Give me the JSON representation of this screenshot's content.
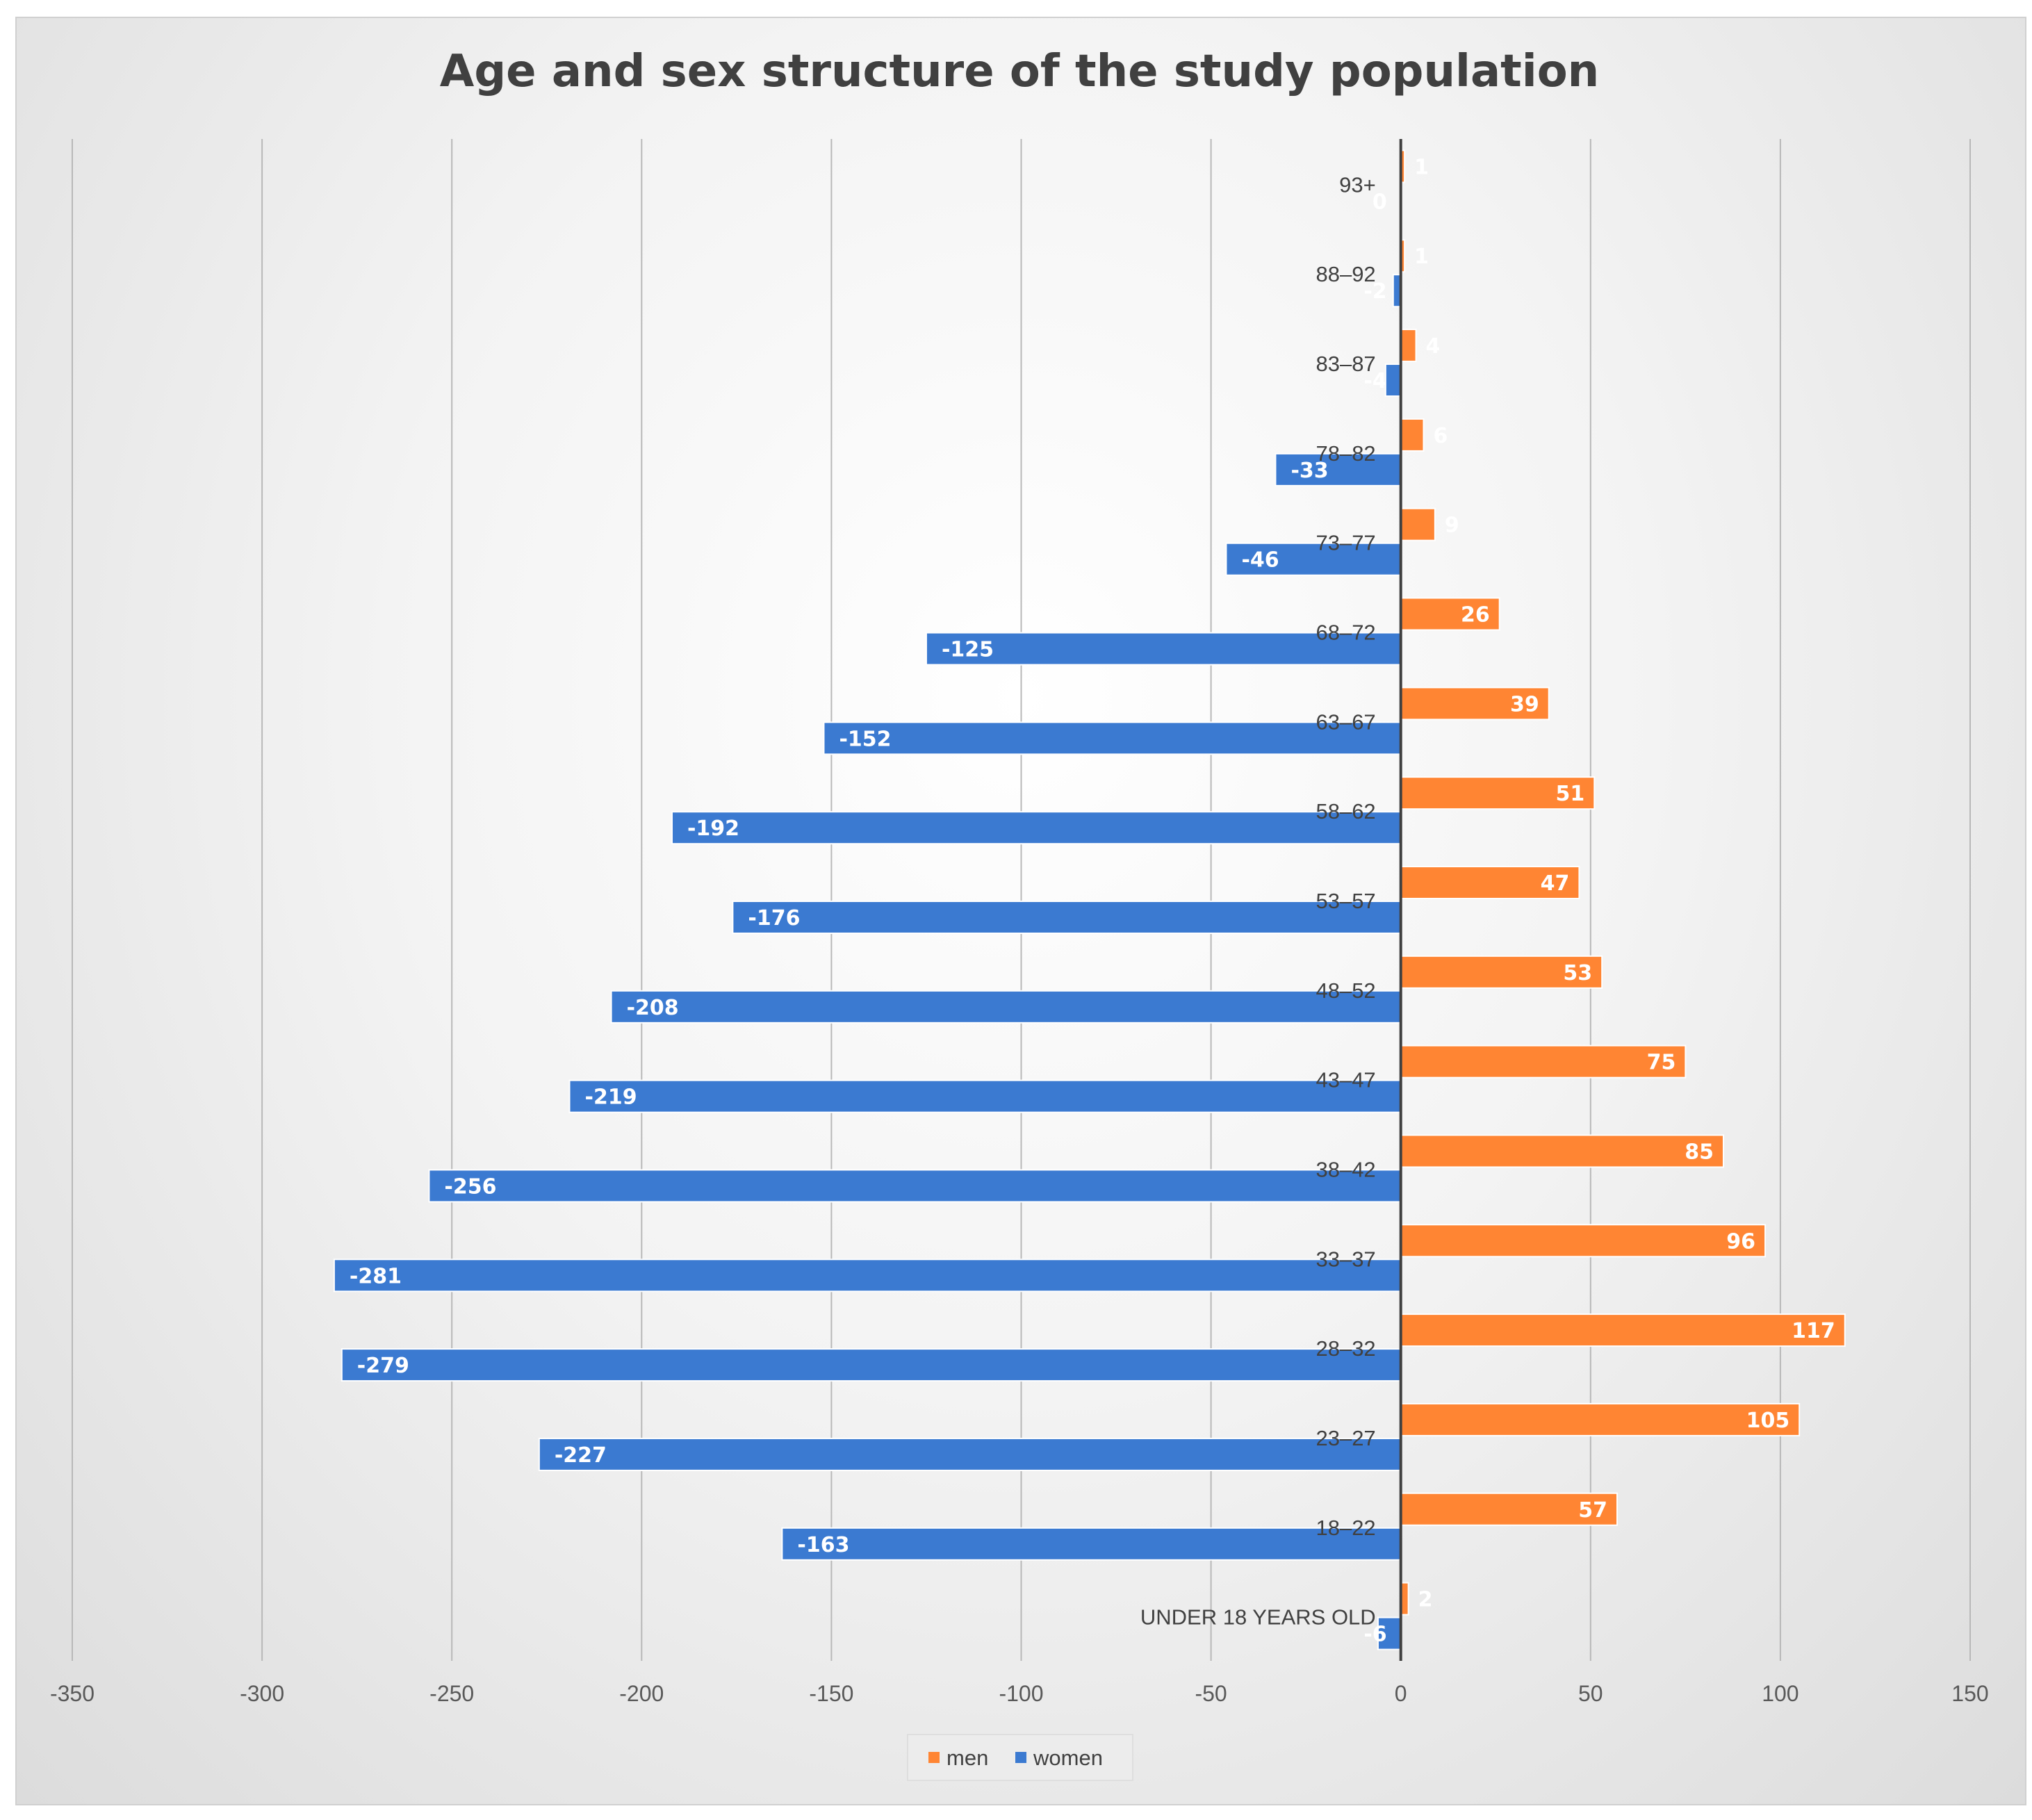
{
  "chart_data": {
    "type": "bar",
    "orientation": "horizontal",
    "title": "Age and sex structure of the study population",
    "xlabel": "",
    "ylabel": "",
    "xlim": [
      -350,
      150
    ],
    "x_ticks": [
      -350,
      -300,
      -250,
      -200,
      -150,
      -100,
      -50,
      0,
      50,
      100,
      150
    ],
    "grid": "vertical",
    "legend_position": "bottom",
    "categories": [
      "UNDER 18 YEARS OLD",
      "18–22",
      "23–27",
      "28–32",
      "33–37",
      "38–42",
      "43–47",
      "48–52",
      "53–57",
      "58–62",
      "63–67",
      "68–72",
      "73–77",
      "78–82",
      "83–87",
      "88–92",
      "93+"
    ],
    "series": [
      {
        "name": "men",
        "color": "#ff8533",
        "values": [
          2,
          57,
          105,
          117,
          96,
          85,
          75,
          53,
          47,
          51,
          39,
          26,
          9,
          6,
          4,
          1,
          1
        ]
      },
      {
        "name": "women",
        "color": "#3b7ad1",
        "values": [
          -6,
          -163,
          -227,
          -279,
          -281,
          -256,
          -219,
          -208,
          -176,
          -192,
          -152,
          -125,
          -46,
          -33,
          -4,
          -2,
          0
        ]
      }
    ]
  }
}
